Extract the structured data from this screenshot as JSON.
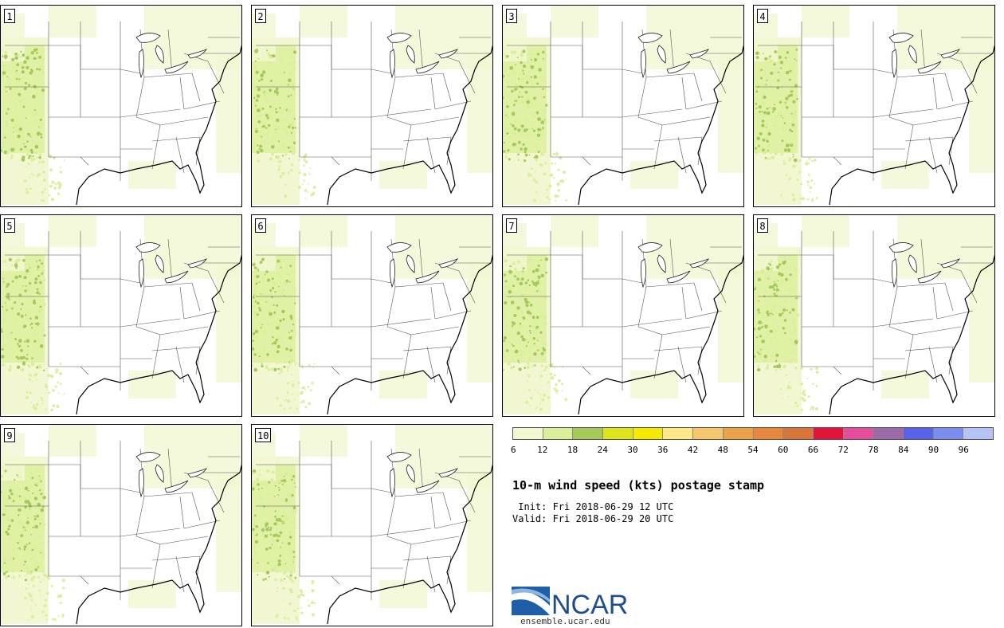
{
  "panels": [
    {
      "label": "1"
    },
    {
      "label": "2"
    },
    {
      "label": "3"
    },
    {
      "label": "4"
    },
    {
      "label": "5"
    },
    {
      "label": "6"
    },
    {
      "label": "7"
    },
    {
      "label": "8"
    },
    {
      "label": "9"
    },
    {
      "label": "10"
    }
  ],
  "colorbar": {
    "colors": [
      "#f2f7d2",
      "#dbef9b",
      "#a7c95c",
      "#dde61c",
      "#f5eb00",
      "#fde98a",
      "#f6c86e",
      "#eba04a",
      "#e6873a",
      "#d9743a",
      "#e2143c",
      "#e34f9b",
      "#9c6aa6",
      "#5b62ea",
      "#7b8ef0",
      "#b4c4f5"
    ],
    "ticks": [
      "6",
      "12",
      "18",
      "24",
      "30",
      "36",
      "42",
      "48",
      "54",
      "60",
      "66",
      "72",
      "78",
      "84",
      "90",
      "96"
    ]
  },
  "title": "10-m wind speed (kts) postage stamp",
  "init_text": " Init: Fri 2018-06-29 12 UTC",
  "valid_text": "Valid: Fri 2018-06-29 20 UTC",
  "logo": {
    "text": "NCAR",
    "url": "ensemble.ucar.edu",
    "color": "#1f4e8c"
  }
}
